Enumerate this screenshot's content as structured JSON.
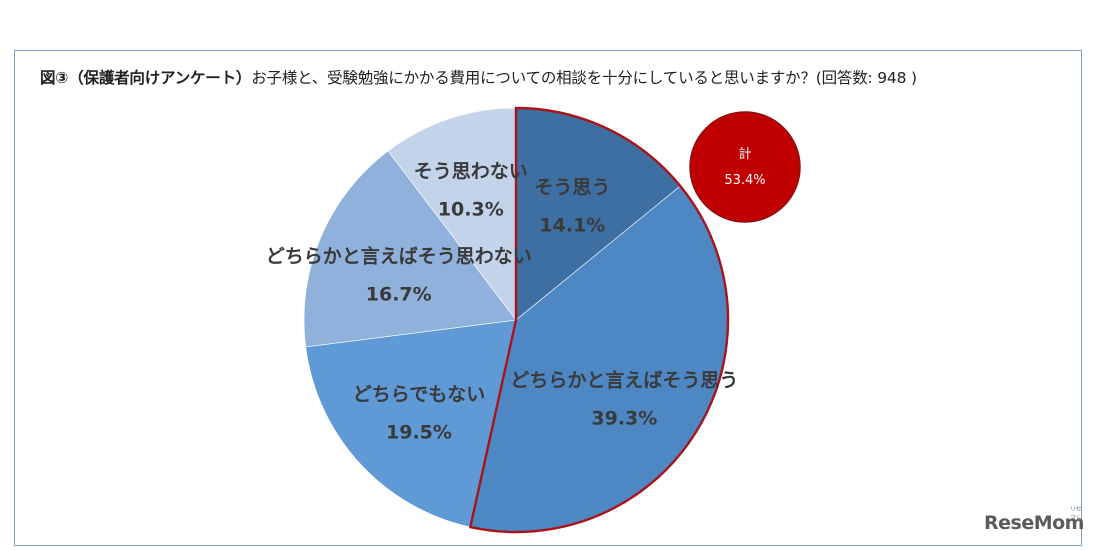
{
  "title": {
    "bold": "図③（保護者向けアンケート）",
    "rest": "お子様と、受験勉強にかかる費用についての相談を十分にしていると思いますか？(回答数: 948 )"
  },
  "chart_data": {
    "type": "pie",
    "start": "12 o'clock",
    "direction": "clockwise",
    "slices": [
      {
        "label": "そう思う",
        "value": 14.1,
        "pct": "14.1%",
        "color": "#3e6fa3"
      },
      {
        "label": "どちらかと言えばそう思う",
        "value": 39.3,
        "pct": "39.3%",
        "color": "#4d87c4"
      },
      {
        "label": "どちらでもない",
        "value": 19.5,
        "pct": "19.5%",
        "color": "#5f99d6"
      },
      {
        "label": "どちらかと言えばそう思わない",
        "value": 16.7,
        "pct": "16.7%",
        "color": "#8fb1db"
      },
      {
        "label": "そう思わない",
        "value": 10.3,
        "pct": "10.3%",
        "color": "#c3d3ea"
      }
    ],
    "highlight": {
      "label": "計",
      "value": "53.4%",
      "slices": [
        "そう思う",
        "どちらかと言えばそう思う"
      ],
      "outline_color": "#a8141c",
      "badge_color": "#c00000"
    }
  },
  "logo": {
    "main": "ReseMom",
    "small": "リセマム"
  }
}
